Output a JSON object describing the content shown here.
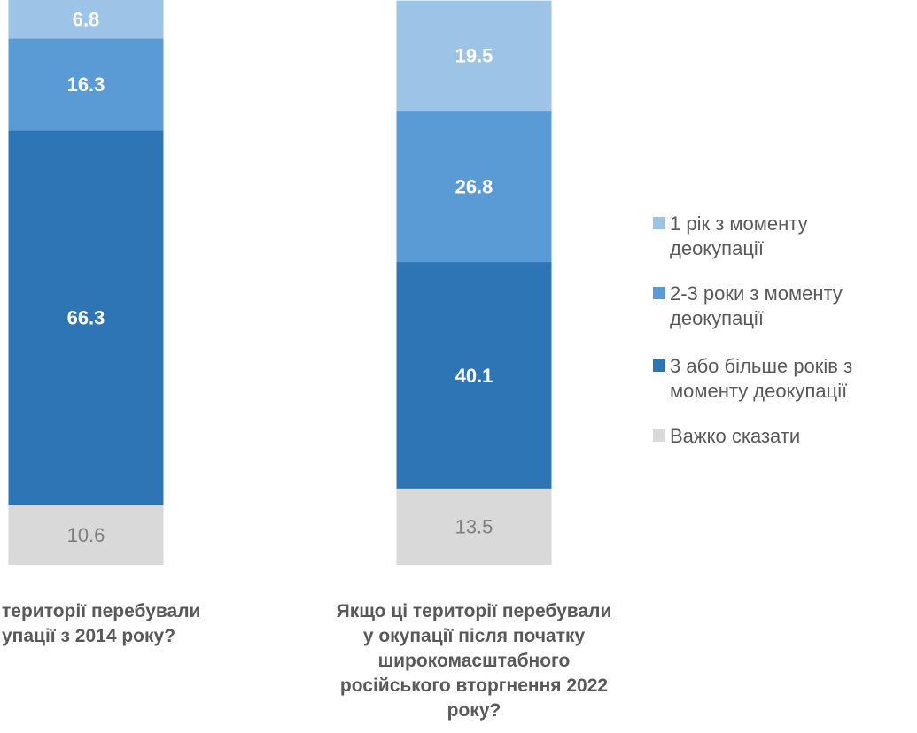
{
  "chart_data": {
    "type": "stacked_bar",
    "categories": [
      "території перебували\nупації з 2014 року?",
      "Якщо ці території перебували\nу окупації після початку\nширокомасштабного\nросійського вторгнення 2022\nроку?"
    ],
    "series": [
      {
        "name": "Важко сказати",
        "color": "#d9d9d9",
        "values": [
          10.6,
          13.5
        ]
      },
      {
        "name": "3 або більше років з\nмоменту деокупації",
        "color": "#2e75b6",
        "values": [
          66.3,
          40.1
        ]
      },
      {
        "name": "2-3 роки з моменту\nдеокупації",
        "color": "#5b9bd5",
        "values": [
          16.3,
          26.8
        ]
      },
      {
        "name": "1 рік з моменту\nдеокупації",
        "color": "#9dc3e6",
        "values": [
          6.8,
          19.5
        ]
      }
    ],
    "ylim": [
      0,
      100
    ],
    "legend": "right"
  }
}
